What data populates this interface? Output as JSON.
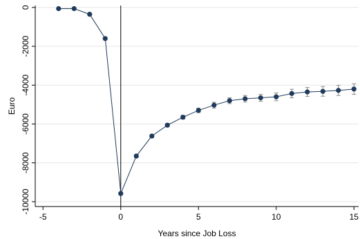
{
  "chart_data": {
    "type": "line",
    "xlabel": "Years since Job Loss",
    "ylabel": "Euro",
    "xlim": [
      -5.5,
      15.3
    ],
    "ylim": [
      -10250,
      100
    ],
    "x_ticks": [
      -5,
      0,
      5,
      10,
      15
    ],
    "x_tick_labels": [
      "-5",
      "0",
      "5",
      "10",
      "15"
    ],
    "y_ticks": [
      0,
      -2000,
      -4000,
      -6000,
      -8000,
      -10000
    ],
    "y_tick_labels": [
      "0",
      "-2000",
      "-4000",
      "-6000",
      "-8000",
      "-10000"
    ],
    "grid": true,
    "reference_line_x": 0,
    "colors": {
      "series": "#1f3a5a",
      "grid": "#e6e6e6",
      "error_bar": "#8a8a8a"
    },
    "series": [
      {
        "x": [
          -4,
          -3,
          -2,
          -1,
          0,
          1,
          2,
          3,
          4,
          5,
          6,
          7,
          8,
          9,
          10,
          11,
          12,
          13,
          14,
          15
        ],
        "y": [
          -60,
          -60,
          -350,
          -1600,
          -9580,
          -7650,
          -6620,
          -6060,
          -5650,
          -5300,
          -5030,
          -4800,
          -4700,
          -4650,
          -4600,
          -4430,
          -4350,
          -4320,
          -4270,
          -4200
        ],
        "err_low": [
          -100,
          -100,
          -400,
          -1650,
          -9650,
          -7730,
          -6700,
          -6150,
          -5750,
          -5420,
          -5180,
          -4950,
          -4870,
          -4830,
          -4800,
          -4650,
          -4580,
          -4570,
          -4530,
          -4470
        ],
        "err_high": [
          -20,
          -20,
          -300,
          -1550,
          -9510,
          -7570,
          -6540,
          -5970,
          -5550,
          -5180,
          -4880,
          -4650,
          -4530,
          -4470,
          -4400,
          -4210,
          -4120,
          -4070,
          -4010,
          -3930
        ]
      }
    ]
  }
}
